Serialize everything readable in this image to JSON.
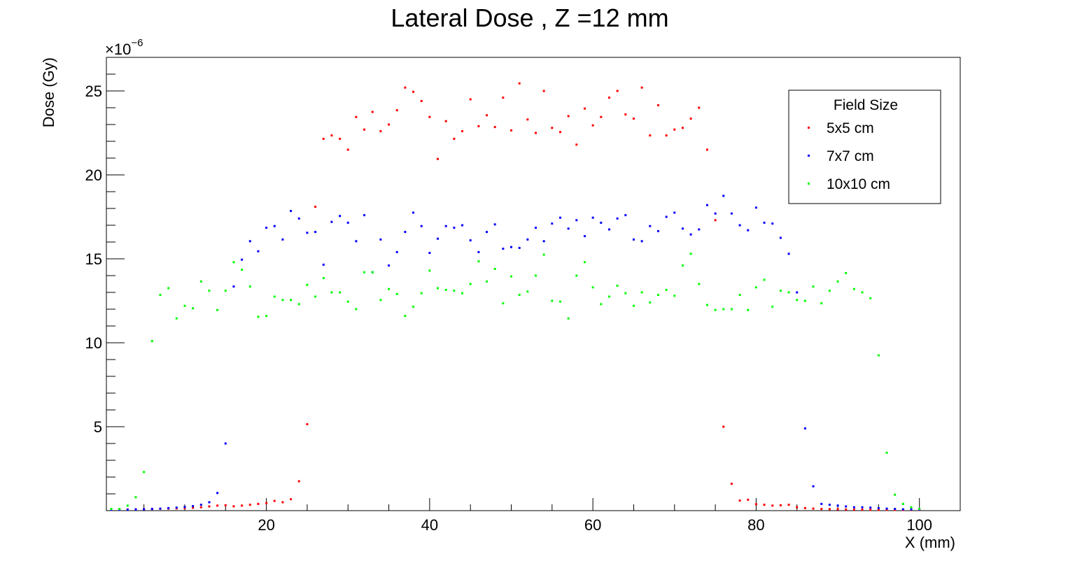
{
  "chart_data": {
    "type": "scatter",
    "title": "Lateral Dose , Z =12 mm",
    "xlabel": "X (mm)",
    "ylabel": "Dose (Gy)",
    "y_exponent_label": "×10",
    "y_exponent_power": "−6",
    "xlim": [
      0.4,
      105
    ],
    "ylim": [
      0,
      27
    ],
    "x_ticks": [
      20,
      40,
      60,
      80,
      100
    ],
    "x_tick_labels": [
      "20",
      "40",
      "60",
      "80",
      "100"
    ],
    "y_ticks": [
      5,
      10,
      15,
      20,
      25
    ],
    "y_tick_labels": [
      "5",
      "10",
      "15",
      "20",
      "25"
    ],
    "legend": {
      "title": "Field Size",
      "placement": "top-right"
    },
    "grid": false,
    "series": [
      {
        "name": "5x5 cm",
        "color": "#ff0000",
        "x": [
          1,
          2,
          3,
          4,
          5,
          6,
          7,
          8,
          9,
          10,
          11,
          12,
          13,
          14,
          15,
          16,
          17,
          18,
          19,
          20,
          21,
          22,
          23,
          24,
          25,
          26,
          27,
          28,
          29,
          30,
          31,
          32,
          33,
          34,
          35,
          36,
          37,
          38,
          39,
          40,
          41,
          42,
          43,
          44,
          45,
          46,
          47,
          48,
          49,
          50,
          51,
          52,
          53,
          54,
          55,
          56,
          57,
          58,
          59,
          60,
          61,
          62,
          63,
          64,
          65,
          66,
          67,
          68,
          69,
          70,
          71,
          72,
          73,
          74,
          75,
          76,
          77,
          78,
          79,
          80,
          81,
          82,
          83,
          84,
          85,
          86,
          87,
          88,
          89,
          90,
          91,
          92,
          93,
          94,
          95,
          96,
          97,
          98,
          99,
          100
        ],
        "y": [
          0.05,
          0.06,
          0.07,
          0.08,
          0.09,
          0.1,
          0.11,
          0.12,
          0.13,
          0.15,
          0.17,
          0.2,
          0.25,
          0.3,
          0.32,
          0.26,
          0.3,
          0.35,
          0.4,
          0.45,
          0.58,
          0.5,
          0.68,
          1.75,
          5.15,
          18.1,
          22.15,
          22.35,
          22.15,
          21.5,
          23.45,
          22.7,
          23.75,
          22.6,
          23.0,
          23.85,
          25.2,
          24.95,
          24.4,
          23.45,
          20.95,
          23.2,
          22.15,
          22.6,
          24.5,
          22.9,
          23.55,
          22.85,
          24.6,
          22.65,
          25.45,
          23.3,
          22.5,
          25.0,
          22.8,
          22.55,
          23.5,
          21.8,
          23.95,
          22.95,
          23.45,
          24.6,
          25.0,
          23.6,
          23.35,
          25.2,
          22.35,
          24.15,
          22.35,
          22.7,
          22.8,
          23.35,
          24.0,
          21.5,
          17.3,
          5.0,
          1.6,
          0.6,
          0.65,
          0.38,
          0.35,
          0.3,
          0.32,
          0.35,
          0.2,
          0.15,
          0.12,
          0.1,
          0.09,
          0.08,
          0.07,
          0.06,
          0.06,
          0.05,
          0.05,
          0.05,
          0.04,
          0.04,
          0.04,
          0.04
        ]
      },
      {
        "name": "7x7 cm",
        "color": "#0000ff",
        "x": [
          1,
          2,
          3,
          4,
          5,
          6,
          7,
          8,
          9,
          10,
          11,
          12,
          13,
          14,
          15,
          16,
          17,
          18,
          19,
          20,
          21,
          22,
          23,
          24,
          25,
          26,
          27,
          28,
          29,
          30,
          31,
          32,
          33,
          34,
          35,
          36,
          37,
          38,
          39,
          40,
          41,
          42,
          43,
          44,
          45,
          46,
          47,
          48,
          49,
          50,
          51,
          52,
          53,
          54,
          55,
          56,
          57,
          58,
          59,
          60,
          61,
          62,
          63,
          64,
          65,
          66,
          67,
          68,
          69,
          70,
          71,
          72,
          73,
          74,
          75,
          76,
          77,
          78,
          79,
          80,
          81,
          82,
          83,
          84,
          85,
          86,
          87,
          88,
          89,
          90,
          91,
          92,
          93,
          94,
          95,
          96,
          97,
          98,
          99,
          100
        ],
        "y": [
          0.05,
          0.05,
          0.06,
          0.07,
          0.08,
          0.1,
          0.12,
          0.15,
          0.18,
          0.22,
          0.27,
          0.35,
          0.5,
          1.05,
          4.0,
          13.35,
          14.95,
          16.05,
          15.45,
          16.85,
          16.95,
          16.15,
          17.85,
          17.4,
          16.55,
          16.6,
          14.65,
          17.2,
          17.55,
          17.15,
          16.05,
          17.6,
          14.2,
          16.15,
          14.6,
          15.4,
          16.6,
          17.75,
          16.95,
          15.35,
          16.2,
          16.95,
          16.85,
          17.0,
          16.1,
          15.4,
          16.6,
          17.05,
          15.6,
          15.7,
          15.65,
          16.15,
          16.85,
          16.05,
          17.1,
          17.45,
          16.8,
          17.3,
          16.35,
          17.45,
          17.15,
          16.75,
          17.4,
          17.6,
          16.15,
          16.05,
          16.95,
          16.65,
          17.5,
          17.75,
          16.8,
          16.45,
          16.75,
          18.2,
          17.7,
          18.75,
          17.7,
          17.0,
          16.7,
          18.05,
          17.15,
          17.1,
          16.25,
          15.3,
          13.0,
          4.9,
          1.45,
          0.4,
          0.35,
          0.3,
          0.25,
          0.2,
          0.2,
          0.18,
          0.15,
          0.12,
          0.1,
          0.08,
          0.07,
          0.06
        ]
      },
      {
        "name": "10x10 cm",
        "color": "#00ff00",
        "x": [
          1,
          2,
          3,
          4,
          5,
          6,
          7,
          8,
          9,
          10,
          11,
          12,
          13,
          14,
          15,
          16,
          17,
          18,
          19,
          20,
          21,
          22,
          23,
          24,
          25,
          26,
          27,
          28,
          29,
          30,
          31,
          32,
          33,
          34,
          35,
          36,
          37,
          38,
          39,
          40,
          41,
          42,
          43,
          44,
          45,
          46,
          47,
          48,
          49,
          50,
          51,
          52,
          53,
          54,
          55,
          56,
          57,
          58,
          59,
          60,
          61,
          62,
          63,
          64,
          65,
          66,
          67,
          68,
          69,
          70,
          71,
          72,
          73,
          74,
          75,
          76,
          77,
          78,
          79,
          80,
          81,
          82,
          83,
          84,
          85,
          86,
          87,
          88,
          89,
          90,
          91,
          92,
          93,
          94,
          95,
          96,
          97,
          98,
          99,
          100
        ],
        "y": [
          0.1,
          0.1,
          0.3,
          0.8,
          2.3,
          10.1,
          12.85,
          13.25,
          11.45,
          12.2,
          12.05,
          13.65,
          13.1,
          11.95,
          13.1,
          14.8,
          14.35,
          13.35,
          11.55,
          11.6,
          12.75,
          12.55,
          12.55,
          12.3,
          13.45,
          12.75,
          13.85,
          13.0,
          13.0,
          12.45,
          12.0,
          14.2,
          14.2,
          12.55,
          13.2,
          12.9,
          11.6,
          12.15,
          12.95,
          14.3,
          13.25,
          13.15,
          13.1,
          12.95,
          13.5,
          14.85,
          13.65,
          14.4,
          12.35,
          13.95,
          12.85,
          13.05,
          14.0,
          15.25,
          12.5,
          12.45,
          11.45,
          14.0,
          14.8,
          13.3,
          12.3,
          12.75,
          13.4,
          12.95,
          12.2,
          13.0,
          12.4,
          12.85,
          13.15,
          12.8,
          14.6,
          15.3,
          13.5,
          12.25,
          11.95,
          12.0,
          12.0,
          12.85,
          11.95,
          13.3,
          13.75,
          12.15,
          13.1,
          13.0,
          12.55,
          12.5,
          13.35,
          12.35,
          13.1,
          13.65,
          14.15,
          13.2,
          13.0,
          12.65,
          9.25,
          3.45,
          0.95,
          0.4,
          0.2,
          0.1
        ]
      }
    ]
  }
}
